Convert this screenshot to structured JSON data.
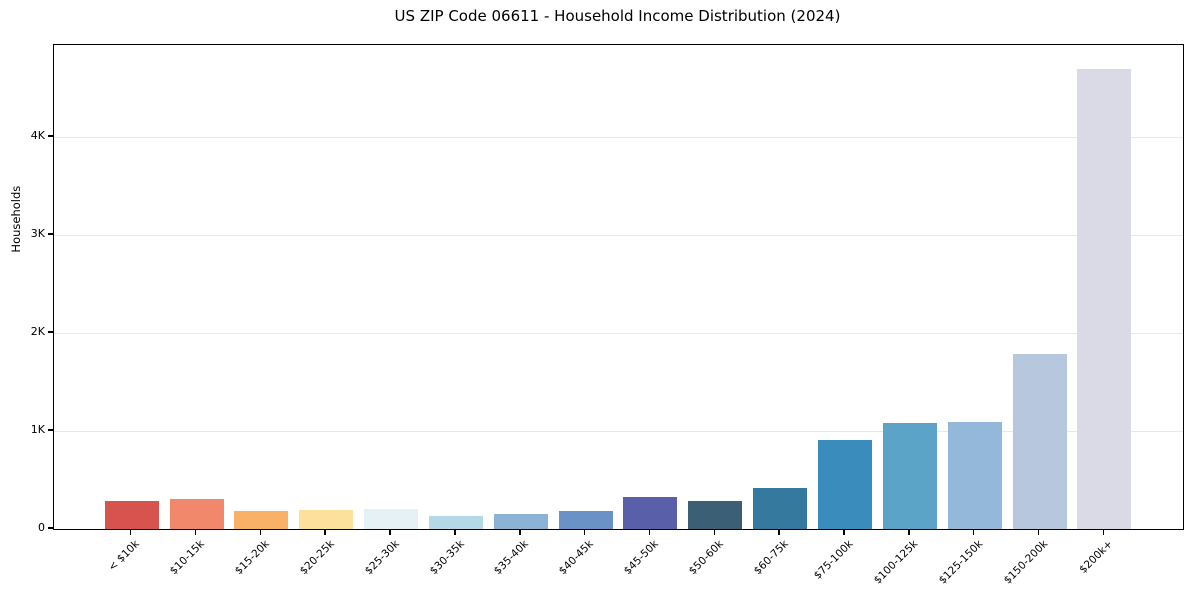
{
  "chart_data": {
    "type": "bar",
    "title": "US ZIP Code 06611 - Household Income Distribution (2024)",
    "xlabel": "",
    "ylabel": "Households",
    "categories": [
      "< $10k",
      "$10-15k",
      "$15-20k",
      "$20-25k",
      "$25-30k",
      "$30-35k",
      "$35-40k",
      "$40-45k",
      "$45-50k",
      "$50-60k",
      "$60-75k",
      "$75-100k",
      "$100-125k",
      "$125-150k",
      "$150-200k",
      "$200k+"
    ],
    "values": [
      290,
      310,
      185,
      195,
      200,
      130,
      155,
      180,
      325,
      285,
      420,
      910,
      1080,
      1095,
      1790,
      4700
    ],
    "bar_colors": [
      "#d6534e",
      "#f2886b",
      "#f9b168",
      "#fce09c",
      "#e6f1f6",
      "#b3d8e8",
      "#8ab3d5",
      "#6a92c7",
      "#5a5fa9",
      "#3b5f74",
      "#36799f",
      "#3a8cbd",
      "#5ba4c8",
      "#93b8da",
      "#b7c8de",
      "#d9dae6"
    ],
    "ylim": [
      0,
      4940
    ],
    "yticks": [
      {
        "value": 0,
        "label": "0"
      },
      {
        "value": 1000,
        "label": "1K"
      },
      {
        "value": 2000,
        "label": "2K"
      },
      {
        "value": 3000,
        "label": "3K"
      },
      {
        "value": 4000,
        "label": "4K"
      }
    ],
    "grid": "horizontal",
    "grid_color": "#e7e7ec",
    "axis_color": "#000000",
    "background_color": "#ffffff",
    "legend": null
  }
}
